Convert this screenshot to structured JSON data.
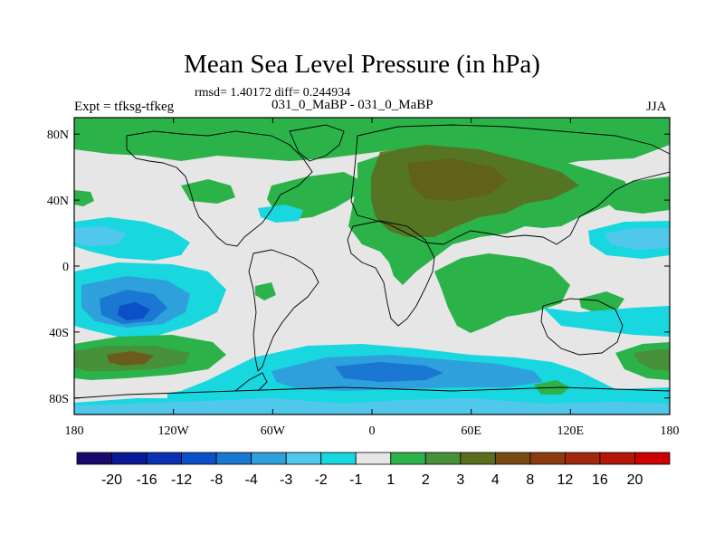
{
  "title": "Mean Sea Level Pressure (in hPa)",
  "stats": "rmsd= 1.40172 diff= 0.244934",
  "left_label": "Expt = tfksg-tfkeg",
  "center_label": "031_0_MaBP - 031_0_MaBP",
  "right_label": "JJA",
  "chart_data": {
    "type": "heatmap",
    "projection": "cylindrical-equidistant",
    "title": "Mean Sea Level Pressure (in hPa)",
    "xlim": [
      -180,
      180
    ],
    "ylim": [
      -90,
      90
    ],
    "x_ticks": [
      {
        "value": -180,
        "label": "180"
      },
      {
        "value": -120,
        "label": "120W"
      },
      {
        "value": -60,
        "label": "60W"
      },
      {
        "value": 0,
        "label": "0"
      },
      {
        "value": 60,
        "label": "60E"
      },
      {
        "value": 120,
        "label": "120E"
      },
      {
        "value": 180,
        "label": "180"
      }
    ],
    "y_ticks": [
      {
        "value": 80,
        "label": "80N"
      },
      {
        "value": 40,
        "label": "40N"
      },
      {
        "value": 0,
        "label": "0"
      },
      {
        "value": -40,
        "label": "40S"
      },
      {
        "value": -80,
        "label": "80S"
      }
    ],
    "colorbar": {
      "levels": [
        "-20",
        "-16",
        "-12",
        "-8",
        "-4",
        "-3",
        "-2",
        "-1",
        "1",
        "2",
        "3",
        "4",
        "8",
        "12",
        "16",
        "20"
      ],
      "colors": [
        "#1a0a6e",
        "#0a1a96",
        "#0a30b4",
        "#0b50c8",
        "#1a78d2",
        "#2ea0dc",
        "#50c8eb",
        "#18d7df",
        "#e6e6e6",
        "#2bb34a",
        "#46913a",
        "#5b6e1e",
        "#7a4a14",
        "#8c3a10",
        "#a0280c",
        "#b4160a",
        "#cc0000"
      ]
    },
    "regions": [
      {
        "name": "arctic-positive",
        "level": "1 to 2",
        "lon_range": [
          -180,
          180
        ],
        "lat_range": [
          60,
          90
        ]
      },
      {
        "name": "eurasia-positive",
        "level": "2 to 4",
        "lon_range": [
          -10,
          140
        ],
        "lat_range": [
          10,
          75
        ]
      },
      {
        "name": "africa-indian-positive",
        "level": "1 to 2",
        "lon_range": [
          20,
          110
        ],
        "lat_range": [
          -40,
          10
        ]
      },
      {
        "name": "south-pacific-negative",
        "level": "-3 to -4",
        "lon_range": [
          -180,
          -90
        ],
        "lat_range": [
          -50,
          0
        ]
      },
      {
        "name": "southern-ocean-negative",
        "level": "-1 to -3",
        "lon_range": [
          -80,
          120
        ],
        "lat_range": [
          -80,
          -55
        ]
      },
      {
        "name": "south-pacific-midlat-positive",
        "level": "2 to 3",
        "lon_range": [
          -180,
          -120
        ],
        "lat_range": [
          -70,
          -50
        ]
      }
    ]
  }
}
